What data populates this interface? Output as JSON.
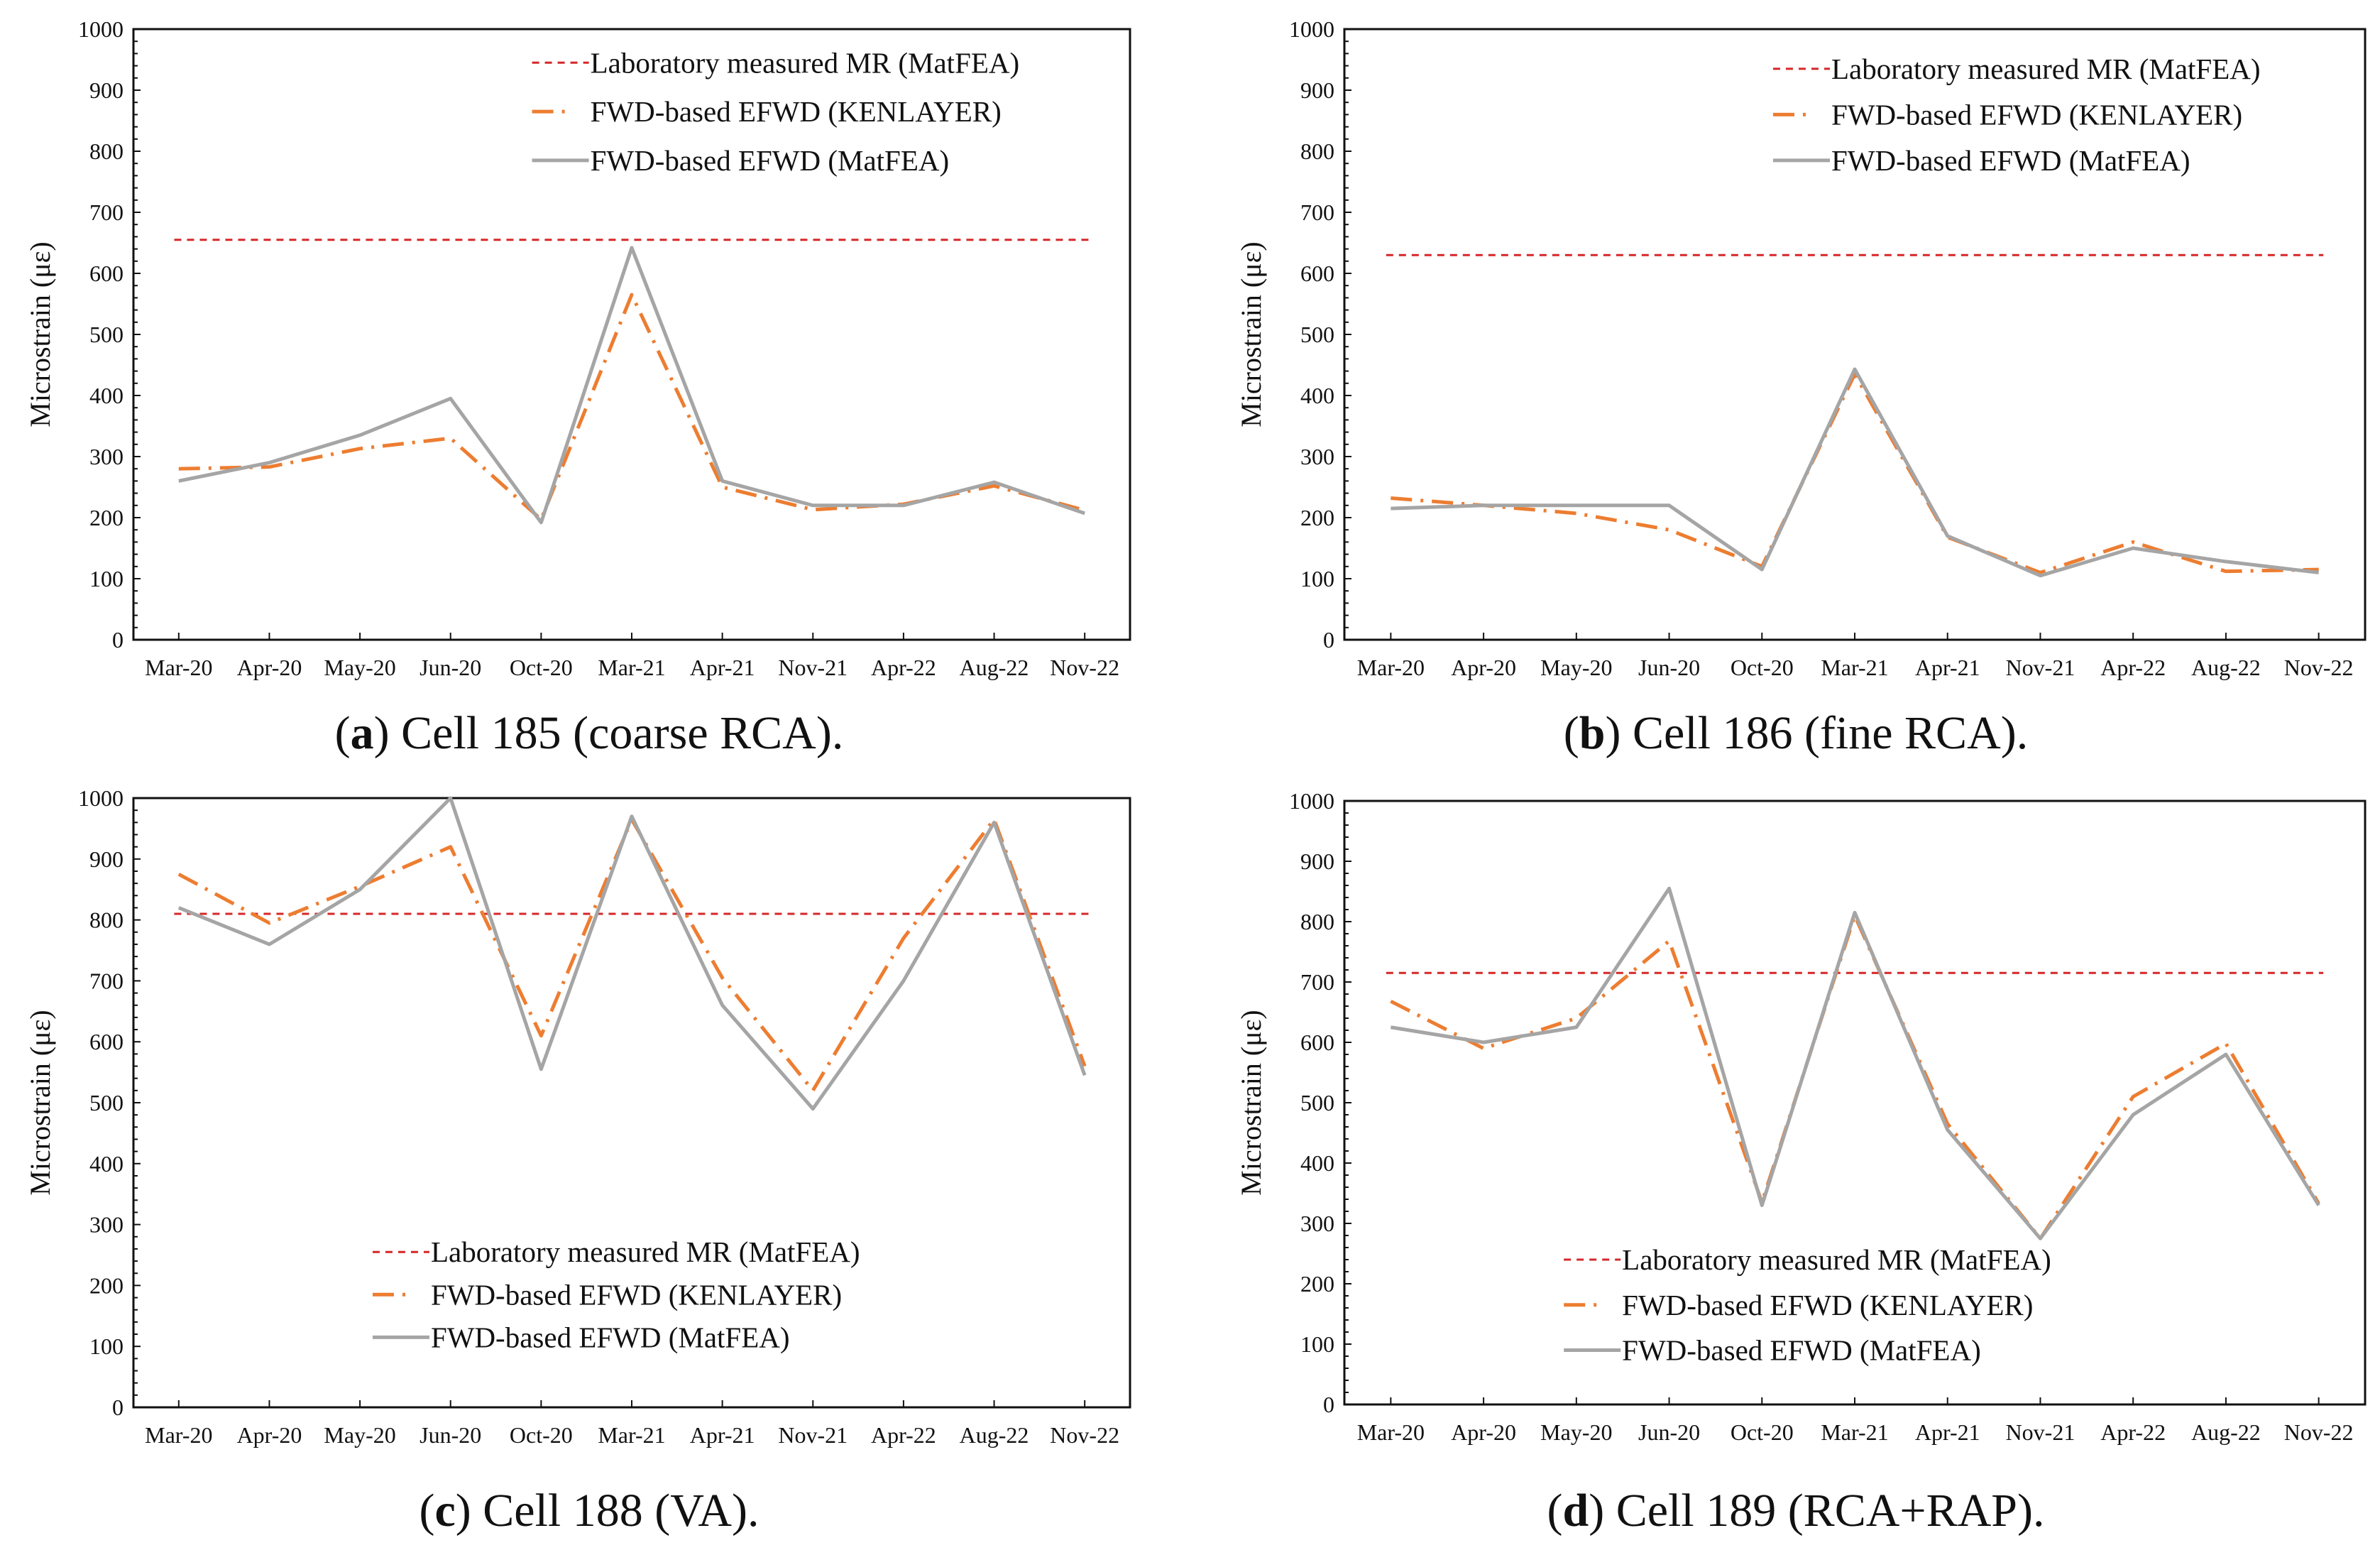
{
  "chart_data": [
    {
      "type": "line",
      "panel": "a",
      "caption": {
        "letter": "a",
        "text": " Cell 185 (coarse RCA)."
      },
      "ylabel": "Microstrain (με)",
      "xlabel": "",
      "ylim": [
        0,
        1000
      ],
      "yticks": [
        "0",
        "100",
        "200",
        "300",
        "400",
        "500",
        "600",
        "700",
        "800",
        "900",
        "1000"
      ],
      "categories": [
        "Mar-20",
        "Apr-20",
        "May-20",
        "Jun-20",
        "Oct-20",
        "Mar-21",
        "Apr-21",
        "Nov-21",
        "Apr-22",
        "Aug-22",
        "Nov-22"
      ],
      "legend_placement": "top-right",
      "series": [
        {
          "name": "Laboratory measured MR (MatFEA)",
          "style": "dashed",
          "color": "#d62728",
          "values": [
            655,
            655,
            655,
            655,
            655,
            655,
            655,
            655,
            655,
            655,
            655
          ]
        },
        {
          "name": "FWD-based EFWD (KENLAYER)",
          "style": "dash-dot",
          "color": "#ed7d31",
          "values": [
            280,
            283,
            313,
            330,
            197,
            565,
            250,
            213,
            222,
            252,
            212
          ]
        },
        {
          "name": "FWD-based EFWD (MatFEA)",
          "style": "solid",
          "color": "#a5a5a5",
          "values": [
            260,
            290,
            335,
            395,
            192,
            642,
            260,
            220,
            220,
            258,
            207
          ]
        }
      ]
    },
    {
      "type": "line",
      "panel": "b",
      "caption": {
        "letter": "b",
        "text": " Cell 186 (fine RCA)."
      },
      "ylabel": "Microstrain (με)",
      "xlabel": "",
      "ylim": [
        0,
        1000
      ],
      "yticks": [
        "0",
        "100",
        "200",
        "300",
        "400",
        "500",
        "600",
        "700",
        "800",
        "900",
        "1000"
      ],
      "categories": [
        "Mar-20",
        "Apr-20",
        "May-20",
        "Jun-20",
        "Oct-20",
        "Mar-21",
        "Apr-21",
        "Nov-21",
        "Apr-22",
        "Aug-22",
        "Nov-22"
      ],
      "legend_placement": "top-right",
      "series": [
        {
          "name": "Laboratory measured MR (MatFEA)",
          "style": "dashed",
          "color": "#d62728",
          "values": [
            630,
            630,
            630,
            630,
            630,
            630,
            630,
            630,
            630,
            630,
            630
          ]
        },
        {
          "name": "FWD-based EFWD (KENLAYER)",
          "style": "dash-dot",
          "color": "#ed7d31",
          "values": [
            232,
            220,
            207,
            180,
            120,
            435,
            168,
            110,
            160,
            112,
            115
          ]
        },
        {
          "name": "FWD-based EFWD (MatFEA)",
          "style": "solid",
          "color": "#a5a5a5",
          "values": [
            215,
            220,
            220,
            220,
            115,
            443,
            170,
            105,
            150,
            128,
            110
          ]
        }
      ]
    },
    {
      "type": "line",
      "panel": "c",
      "caption": {
        "letter": "c",
        "text": " Cell 188 (VA)."
      },
      "ylabel": "Microstrain (με)",
      "xlabel": "",
      "ylim": [
        0,
        1000
      ],
      "yticks": [
        "0",
        "100",
        "200",
        "300",
        "400",
        "500",
        "600",
        "700",
        "800",
        "900",
        "1000"
      ],
      "categories": [
        "Mar-20",
        "Apr-20",
        "May-20",
        "Jun-20",
        "Oct-20",
        "Mar-21",
        "Apr-21",
        "Nov-21",
        "Apr-22",
        "Aug-22",
        "Nov-22"
      ],
      "legend_placement": "bottom-center",
      "series": [
        {
          "name": "Laboratory measured MR (MatFEA)",
          "style": "dashed",
          "color": "#d62728",
          "values": [
            810,
            810,
            810,
            810,
            810,
            810,
            810,
            810,
            810,
            810,
            810
          ]
        },
        {
          "name": "FWD-based EFWD (KENLAYER)",
          "style": "dash-dot",
          "color": "#ed7d31",
          "values": [
            875,
            795,
            855,
            920,
            610,
            965,
            705,
            520,
            770,
            965,
            560
          ]
        },
        {
          "name": "FWD-based EFWD (MatFEA)",
          "style": "solid",
          "color": "#a5a5a5",
          "values": [
            820,
            760,
            850,
            1000,
            555,
            970,
            660,
            490,
            700,
            960,
            545
          ]
        }
      ]
    },
    {
      "type": "line",
      "panel": "d",
      "caption": {
        "letter": "d",
        "text": " Cell 189 (RCA+RAP)."
      },
      "ylabel": "Microstrain (με)",
      "xlabel": "",
      "ylim": [
        0,
        1000
      ],
      "yticks": [
        "0",
        "100",
        "200",
        "300",
        "400",
        "500",
        "600",
        "700",
        "800",
        "900",
        "1000"
      ],
      "categories": [
        "Mar-20",
        "Apr-20",
        "May-20",
        "Jun-20",
        "Oct-20",
        "Mar-21",
        "Apr-21",
        "Nov-21",
        "Apr-22",
        "Aug-22",
        "Nov-22"
      ],
      "legend_placement": "bottom-center",
      "series": [
        {
          "name": "Laboratory measured MR (MatFEA)",
          "style": "dashed",
          "color": "#d62728",
          "values": [
            715,
            715,
            715,
            715,
            715,
            715,
            715,
            715,
            715,
            715,
            715
          ]
        },
        {
          "name": "FWD-based EFWD (KENLAYER)",
          "style": "dash-dot",
          "color": "#ed7d31",
          "values": [
            668,
            590,
            640,
            768,
            335,
            810,
            465,
            275,
            510,
            598,
            333
          ]
        },
        {
          "name": "FWD-based EFWD (MatFEA)",
          "style": "solid",
          "color": "#a5a5a5",
          "values": [
            625,
            600,
            625,
            855,
            330,
            815,
            455,
            275,
            480,
            580,
            330
          ]
        }
      ]
    }
  ]
}
